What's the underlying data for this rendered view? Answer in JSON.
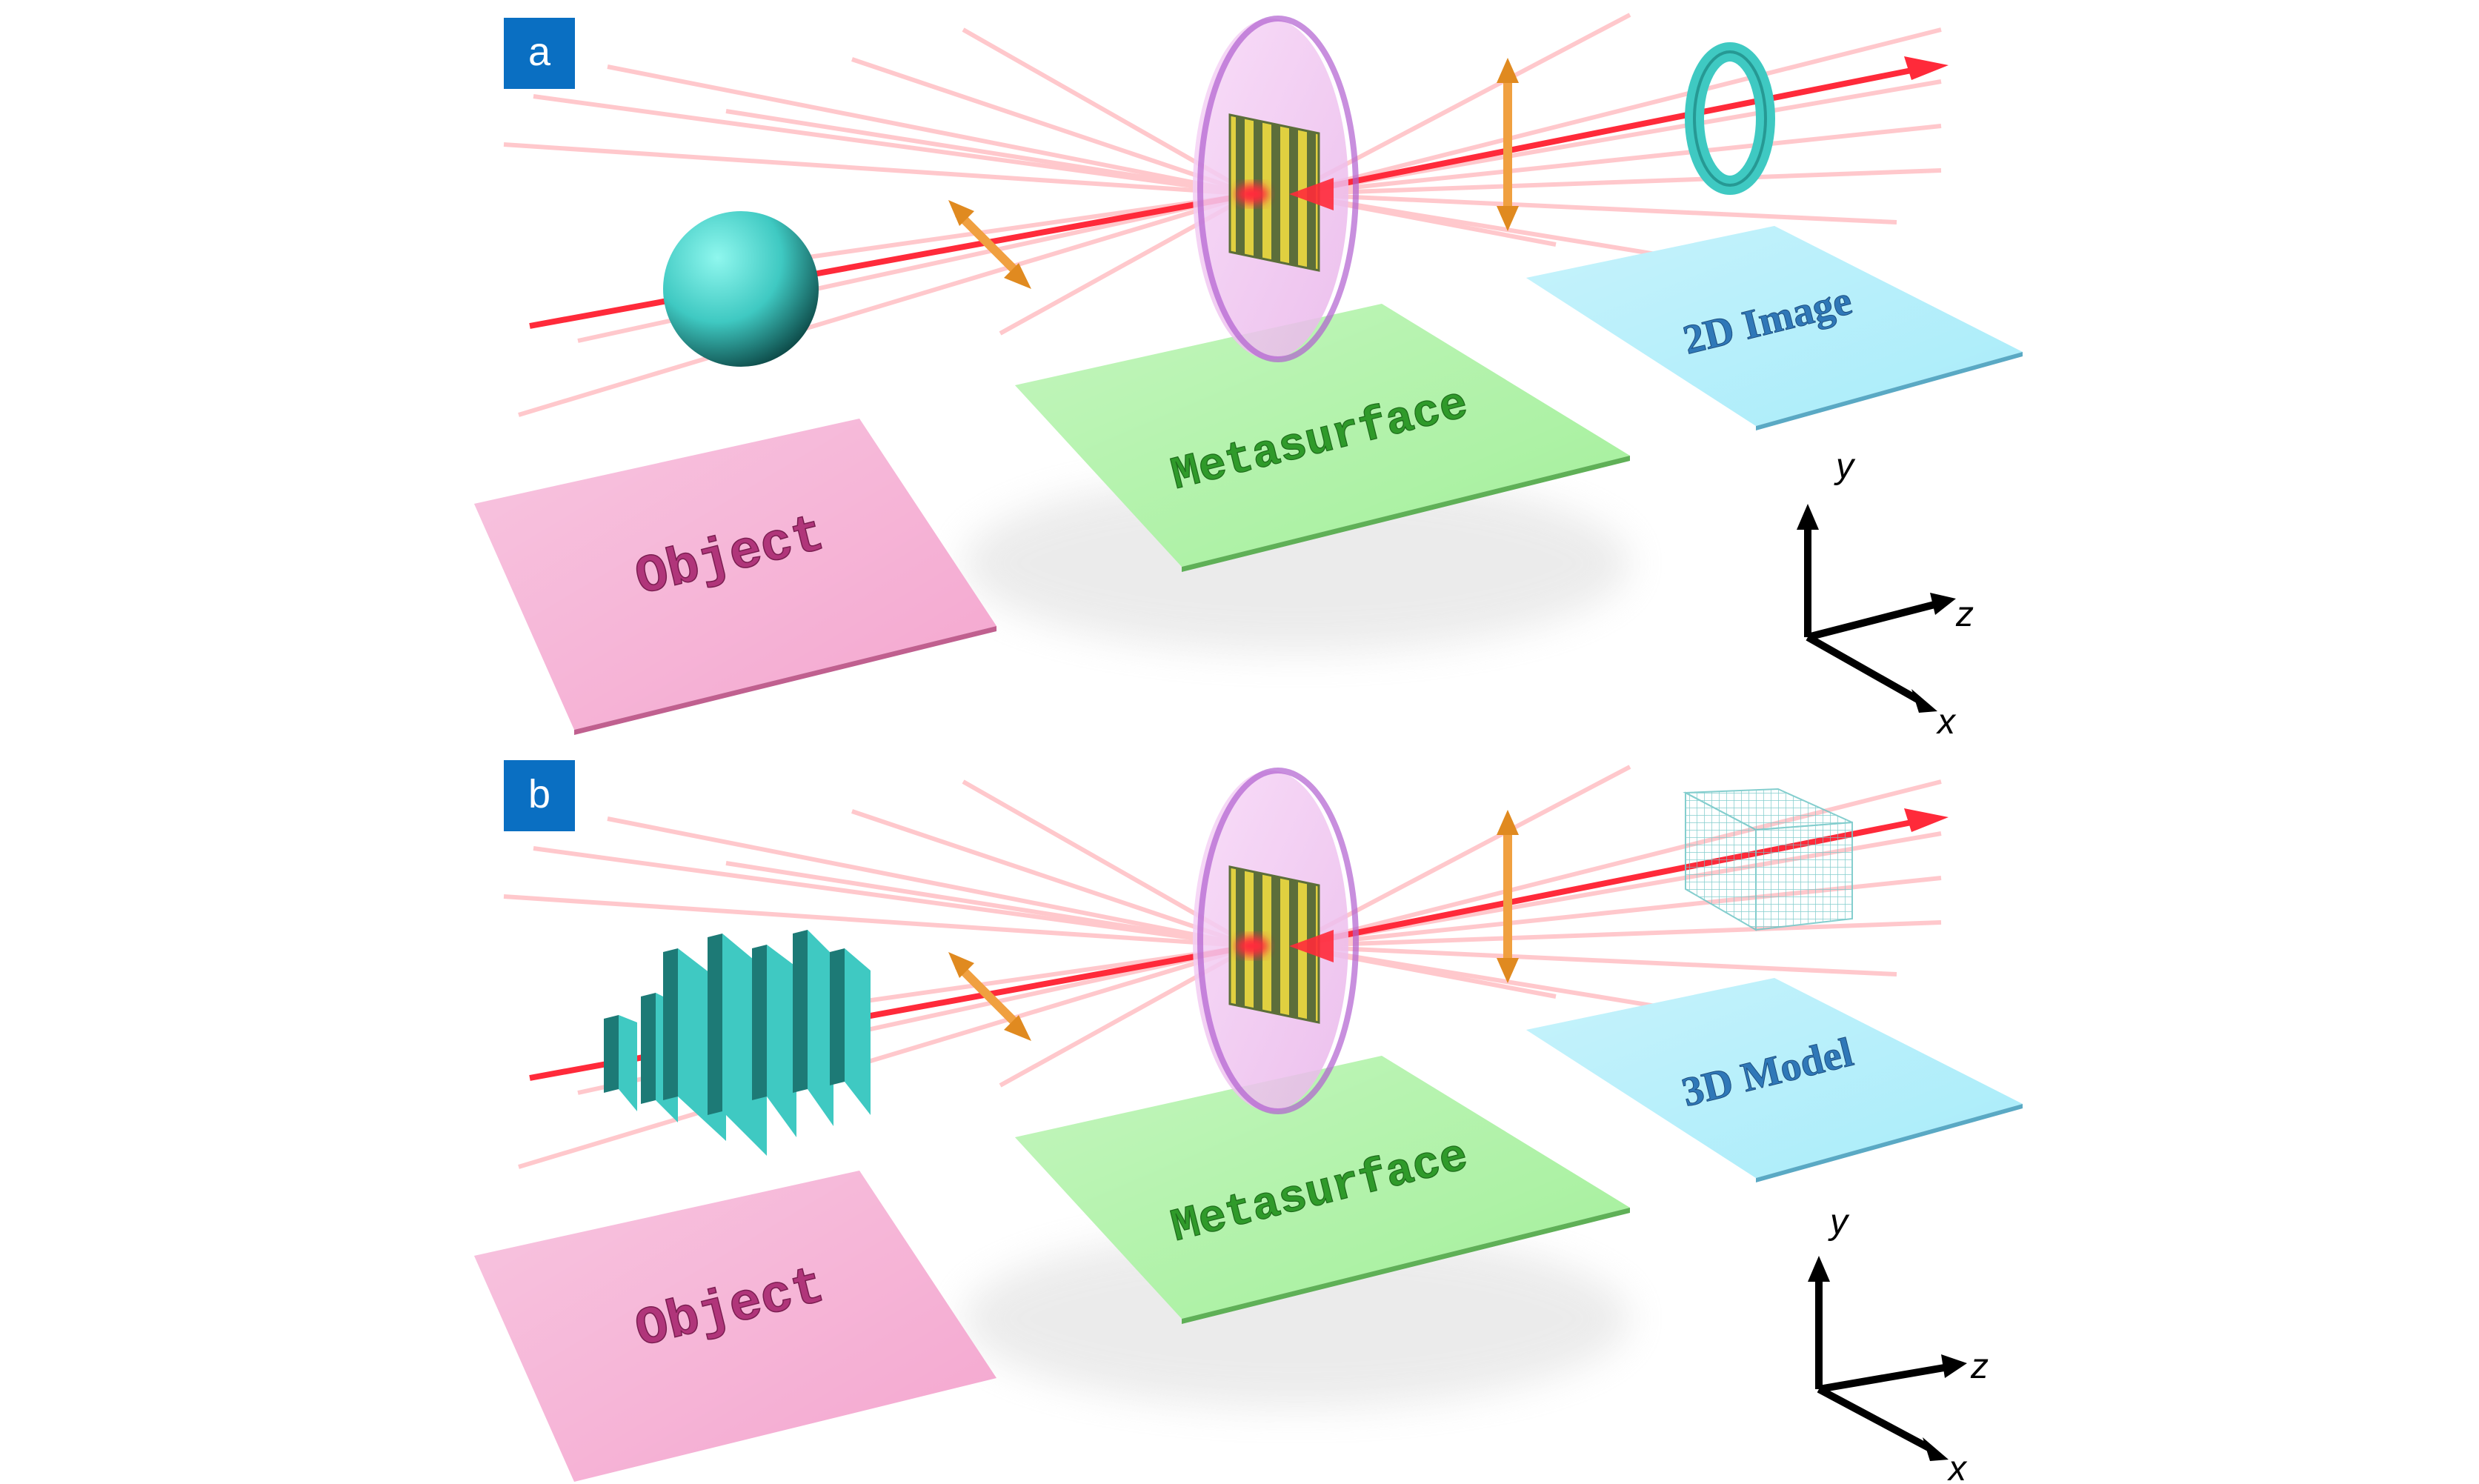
{
  "panels": [
    {
      "tag": "a",
      "object_label": "Object",
      "metasurface_label": "Metasurface",
      "output_label": "2D Image",
      "object_shape": "sphere",
      "output_shape": "ring"
    },
    {
      "tag": "b",
      "object_label": "Object",
      "metasurface_label": "Metasurface",
      "output_label": "3D Model",
      "object_shape": "stacked-plates",
      "output_shape": "wireframe-box"
    }
  ],
  "axes": {
    "y": "y",
    "z": "z",
    "x": "x"
  },
  "colors": {
    "tag_bg": "#0a6fc2",
    "object_plate": "#f4a6cf",
    "object_text": "#b0357a",
    "metasurface_plate": "#a3f09a",
    "metasurface_text": "#2f9a2a",
    "output_plate": "#a8ecfa",
    "output_text": "#2f78b8",
    "beam": "#ff2a3a",
    "teal": "#3fc9c2",
    "polarizer": "#f0a040"
  }
}
